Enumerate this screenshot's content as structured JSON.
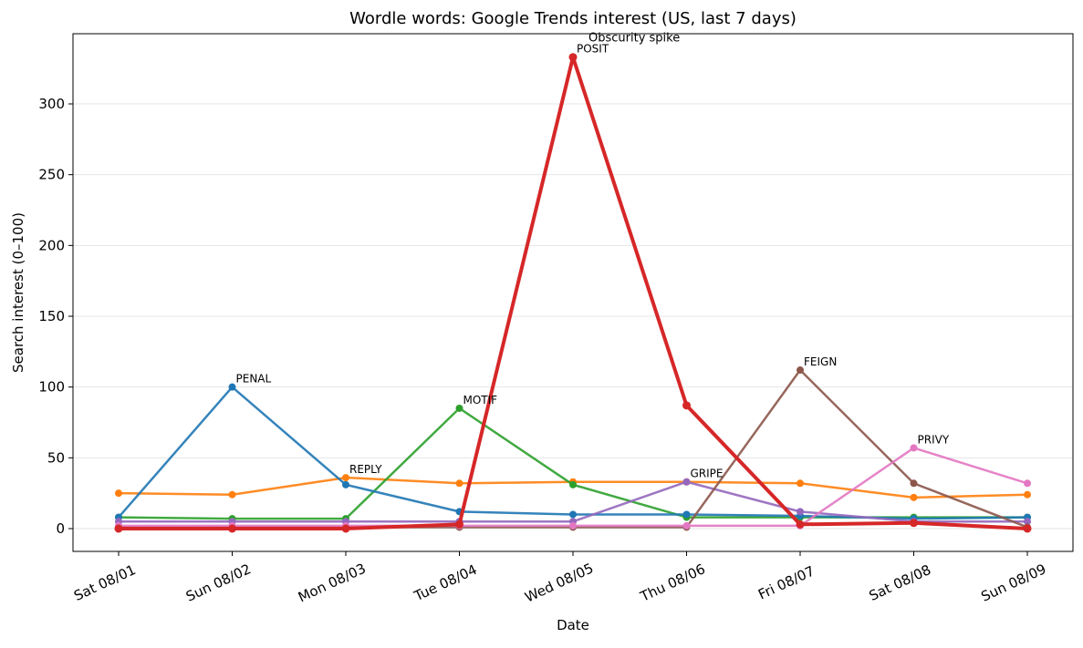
{
  "chart_data": {
    "type": "line",
    "title": "Wordle words: Google Trends interest (US, last 7 days)",
    "xlabel": "Date",
    "ylabel": "Search interest (0–100)",
    "categories": [
      "Sat 08/01",
      "Sun 08/02",
      "Mon 08/03",
      "Tue 08/04",
      "Wed 08/05",
      "Thu 08/06",
      "Fri 08/07",
      "Sat 08/08",
      "Sun 08/09"
    ],
    "y_ticks": [
      0,
      50,
      100,
      150,
      200,
      250,
      300
    ],
    "ylim": [
      -16,
      350
    ],
    "grid": "horizontal",
    "legend": "none",
    "series": [
      {
        "label": "REPLY",
        "label_index": 2,
        "color": "#ff7f0e",
        "values": [
          25,
          24,
          36,
          32,
          33,
          33,
          32,
          22,
          24
        ]
      },
      {
        "label": "MOTIF",
        "label_index": 3,
        "color": "#2ca02c",
        "values": [
          8,
          7,
          7,
          85,
          31,
          8,
          8,
          8,
          8
        ]
      },
      {
        "label": "PENAL",
        "label_index": 1,
        "color": "#1f77b4",
        "values": [
          8,
          100,
          31,
          12,
          10,
          10,
          9,
          7,
          8
        ]
      },
      {
        "label": "GRIPE",
        "label_index": 5,
        "color": "#9467bd",
        "values": [
          5,
          5,
          5,
          5,
          5,
          33,
          12,
          5,
          5
        ]
      },
      {
        "label": "FEIGN",
        "label_index": 6,
        "color": "#8c564b",
        "values": [
          1,
          1,
          1,
          1,
          1,
          1,
          112,
          32,
          1
        ]
      },
      {
        "label": "PRIVY",
        "label_index": 7,
        "color": "#e377c2",
        "values": [
          2,
          2,
          2,
          2,
          2,
          2,
          2,
          57,
          32
        ]
      },
      {
        "label": "POSIT",
        "label_index": 4,
        "color": "#d62728",
        "values": [
          0,
          0,
          0,
          3,
          333,
          87,
          3,
          4,
          0
        ],
        "emphasis": true
      }
    ],
    "annotations": [
      {
        "text": "Obscurity spike",
        "x": "Wed 08/05",
        "y": 333
      }
    ]
  }
}
